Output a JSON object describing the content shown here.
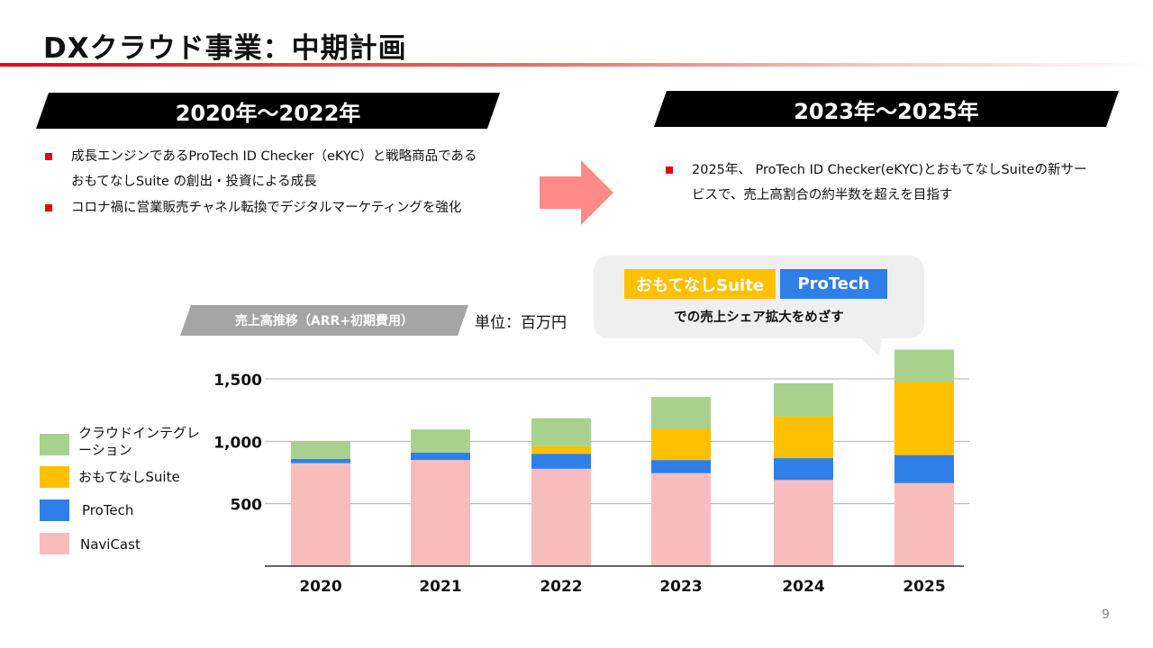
{
  "slide": {
    "title": "DXクラウド事業：中期計画",
    "page_number": "9"
  },
  "left_section": {
    "period_label": "2020年〜2022年",
    "bullets": [
      [
        "成長エンジンであるProTech ID Checker（eKYC）と戦略商品である",
        "おもてなしSuite の創出・投資による成長"
      ],
      [
        "コロナ禍に営業販売チャネル転換でデジタルマーケティングを強化"
      ]
    ]
  },
  "right_section": {
    "period_label": "2023年〜2025年",
    "bullets": [
      [
        "2025年、 ProTech ID Checker(eKYC)とおもてなしSuiteの新サー",
        "ビスで、売上高割合の約半数を超えを目指す"
      ]
    ]
  },
  "callout": {
    "tags": [
      "おもてなしSuite",
      "ProTech"
    ],
    "text": "での売上シェア拡大をめざす"
  },
  "chart_header": {
    "title": "売上高推移（ARR+初期費用）",
    "unit": "単位：百万円"
  },
  "colors": {
    "accent_red": "#e60012",
    "arrow": "#ff8a8a",
    "NaviCast": "#f9bcbd",
    "ProTech": "#2f7fe8",
    "おもてなしSuite": "#ffc000",
    "クラウドインテグレーション": "#a9d18e"
  },
  "chart_data": {
    "type": "bar",
    "stacked": true,
    "categories": [
      "2020",
      "2021",
      "2022",
      "2023",
      "2024",
      "2025"
    ],
    "series": [
      {
        "name": "NaviCast",
        "values": [
          825,
          850,
          780,
          745,
          690,
          665
        ]
      },
      {
        "name": "ProTech",
        "values": [
          35,
          60,
          120,
          105,
          175,
          225
        ]
      },
      {
        "name": "おもてなしSuite",
        "values": [
          0,
          0,
          60,
          250,
          335,
          585
        ]
      },
      {
        "name": "クラウドインテグレーション",
        "values": [
          140,
          185,
          225,
          255,
          265,
          260
        ]
      }
    ],
    "legend": [
      "クラウドインテグレーション",
      "おもてなしSuite",
      "ProTech",
      "NaviCast"
    ],
    "legend_position": "left",
    "yticks": [
      "500",
      "1,000",
      "1,500"
    ],
    "ytick_values": [
      500,
      1000,
      1500
    ],
    "ylim": [
      0,
      1750
    ],
    "grid": true,
    "title": "",
    "xlabel": "",
    "ylabel": ""
  }
}
